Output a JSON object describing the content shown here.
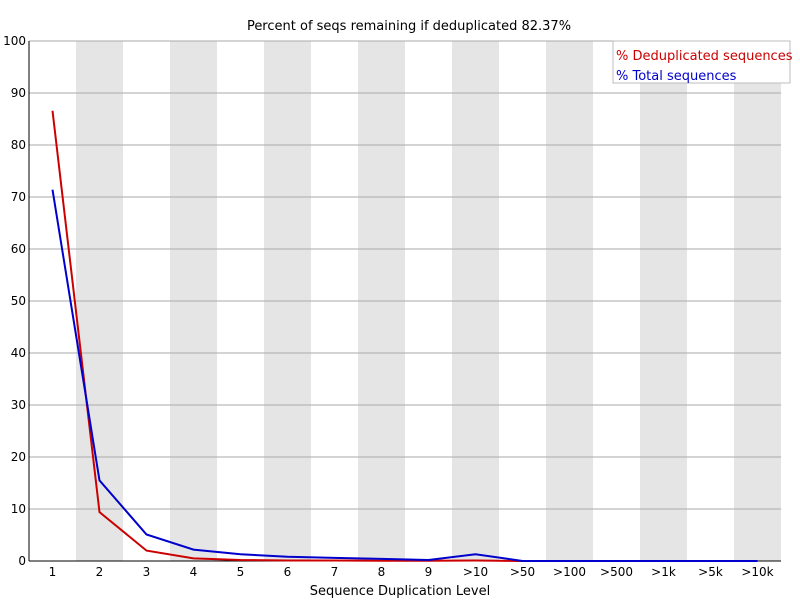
{
  "chart_data": {
    "type": "line",
    "title": "Percent of seqs remaining if deduplicated 82.37%",
    "xlabel": "Sequence Duplication Level",
    "ylabel": "",
    "ylim": [
      0,
      100
    ],
    "yticks": [
      0,
      10,
      20,
      30,
      40,
      50,
      60,
      70,
      80,
      90,
      100
    ],
    "categories": [
      "1",
      "2",
      "3",
      "4",
      "5",
      "6",
      "7",
      "8",
      "9",
      ">10",
      ">50",
      ">100",
      ">500",
      ">1k",
      ">5k",
      ">10k"
    ],
    "grid": true,
    "legend_position": "top-right",
    "series": [
      {
        "name": "% Deduplicated sequences",
        "color": "#cc0000",
        "values": [
          86.6,
          9.4,
          2.0,
          0.5,
          0.2,
          0.1,
          0.1,
          0.05,
          0.05,
          0.1,
          0.0,
          0.0,
          0.0,
          0.0,
          0.0,
          0.0
        ]
      },
      {
        "name": "% Total sequences",
        "color": "#0000cc",
        "values": [
          71.4,
          15.5,
          5.1,
          2.2,
          1.3,
          0.8,
          0.6,
          0.4,
          0.2,
          1.3,
          0.0,
          0.0,
          0.0,
          0.0,
          0.0,
          0.0
        ]
      }
    ]
  }
}
